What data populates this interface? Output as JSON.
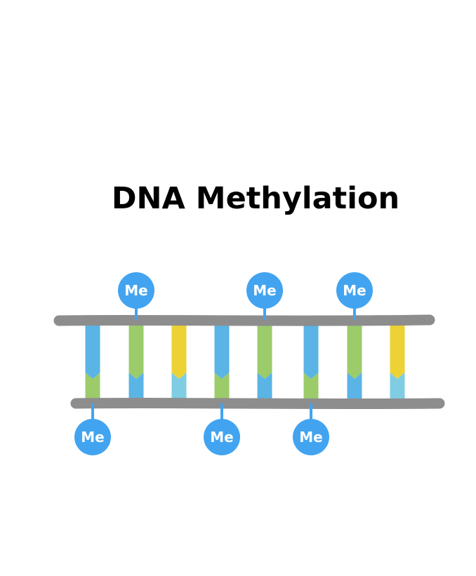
{
  "title": "DNA Methylation",
  "methyl_label": "Me",
  "colors": {
    "backbone": "#8d8d8d",
    "blue": "#5ab4e5",
    "green": "#9ccb6a",
    "yellow": "#ecd235",
    "light_blue": "#7fcde3",
    "methyl_circle": "#42a4f0",
    "methyl_stem": "#42a4f0"
  },
  "base_pairs": [
    {
      "top": "blue",
      "bottom": "green",
      "methylated": "bottom"
    },
    {
      "top": "green",
      "bottom": "blue",
      "methylated": "top"
    },
    {
      "top": "yellow",
      "bottom": "light_blue",
      "methylated": "none"
    },
    {
      "top": "blue",
      "bottom": "green",
      "methylated": "bottom"
    },
    {
      "top": "green",
      "bottom": "blue",
      "methylated": "top"
    },
    {
      "top": "blue",
      "bottom": "green",
      "methylated": "bottom"
    },
    {
      "top": "green",
      "bottom": "blue",
      "methylated": "top"
    },
    {
      "top": "yellow",
      "bottom": "light_blue",
      "methylated": "none"
    }
  ]
}
